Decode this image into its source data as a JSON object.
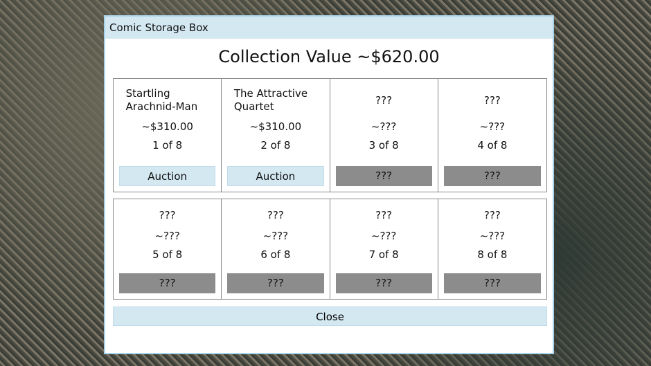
{
  "dialog": {
    "title": "Comic Storage Box",
    "heading": "Collection Value ~$620.00",
    "close_label": "Close"
  },
  "comics": [
    {
      "name": "Startling Arachnid-Man",
      "price": "~$310.00",
      "count": "1 of 8",
      "button": "Auction",
      "unlocked": true
    },
    {
      "name": "The Attractive Quartet",
      "price": "~$310.00",
      "count": "2 of 8",
      "button": "Auction",
      "unlocked": true
    },
    {
      "name": "???",
      "price": "~???",
      "count": "3 of 8",
      "button": "???",
      "unlocked": false
    },
    {
      "name": "???",
      "price": "~???",
      "count": "4 of 8",
      "button": "???",
      "unlocked": false
    },
    {
      "name": "???",
      "price": "~???",
      "count": "5 of 8",
      "button": "???",
      "unlocked": false
    },
    {
      "name": "???",
      "price": "~???",
      "count": "6 of 8",
      "button": "???",
      "unlocked": false
    },
    {
      "name": "???",
      "price": "~???",
      "count": "7 of 8",
      "button": "???",
      "unlocked": false
    },
    {
      "name": "???",
      "price": "~???",
      "count": "8 of 8",
      "button": "???",
      "unlocked": false
    }
  ],
  "colors": {
    "accent": "#d4e8f2",
    "locked": "#8c8c8c",
    "border": "#a9d3e8"
  }
}
